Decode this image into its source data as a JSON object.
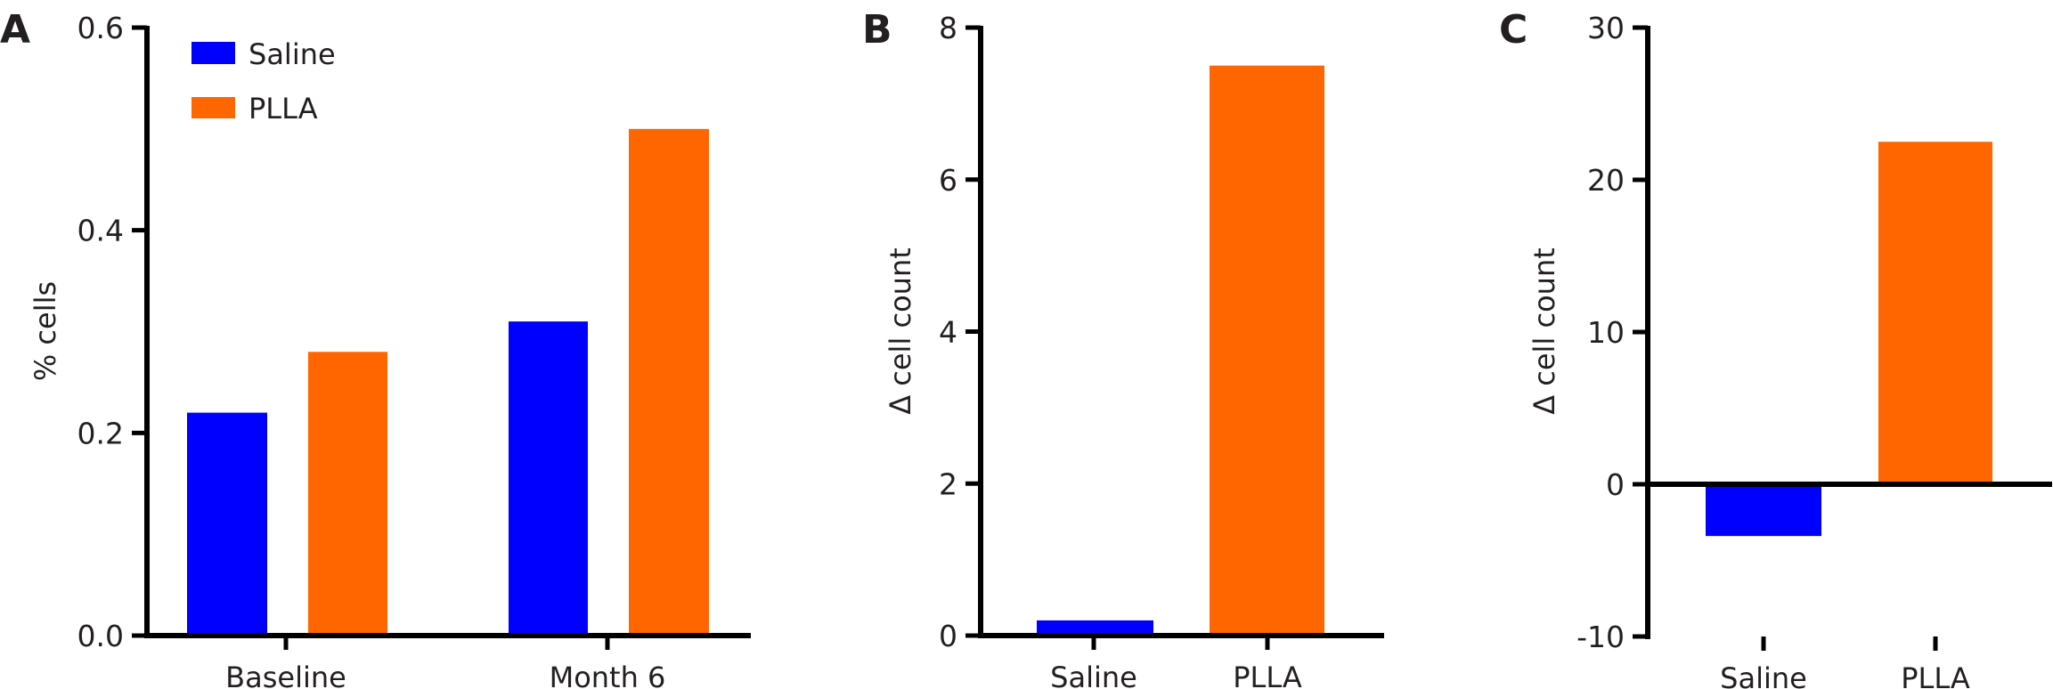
{
  "colors": {
    "Saline": "#0000ff",
    "PLLA": "#ff6600",
    "axis": "#000000"
  },
  "chart_data": [
    {
      "panel": "A",
      "type": "bar",
      "categories": [
        "Baseline",
        "Month 6"
      ],
      "series": [
        {
          "name": "Saline",
          "values": [
            0.22,
            0.31
          ]
        },
        {
          "name": "PLLA",
          "values": [
            0.28,
            0.5
          ]
        }
      ],
      "ylabel": "% cells",
      "xlabel": "",
      "ylim": [
        0,
        0.6
      ],
      "yticks": [
        "0.0",
        "0.2",
        "0.4",
        "0.6"
      ],
      "legend": "top-left",
      "grid": false
    },
    {
      "panel": "B",
      "type": "bar",
      "categories": [
        "Saline",
        "PLLA"
      ],
      "values": [
        0.2,
        7.5
      ],
      "ylabel": "Δ cell count",
      "xlabel": "",
      "ylim": [
        0,
        8
      ],
      "yticks": [
        "0",
        "2",
        "4",
        "6",
        "8"
      ],
      "grid": false
    },
    {
      "panel": "C",
      "type": "bar",
      "categories": [
        "Saline",
        "PLLA"
      ],
      "values": [
        -3.4,
        22.5
      ],
      "ylabel": "Δ cell count",
      "xlabel": "",
      "ylim": [
        -10,
        30
      ],
      "yticks": [
        "-10",
        "0",
        "10",
        "20",
        "30"
      ],
      "grid": false
    }
  ]
}
